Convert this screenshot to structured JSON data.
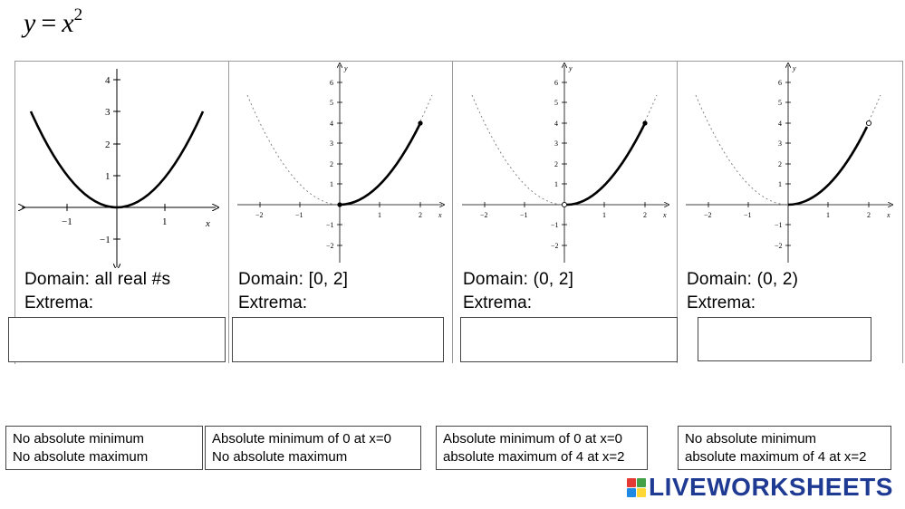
{
  "equation": {
    "lhs": "y",
    "op": "=",
    "base": "x",
    "exp": "2"
  },
  "panels": [
    {
      "domain": "Domain:  all real #s",
      "extrema": "Extrema:",
      "x_ticks": [
        "−1",
        "1"
      ],
      "x_label": "x",
      "y_ticks": [
        "4",
        "3",
        "2",
        "1",
        "−1"
      ]
    },
    {
      "domain": "Domain:  [0, 2]",
      "extrema": "Extrema:",
      "x_ticks": [
        "−2",
        "−1",
        "1",
        "2"
      ],
      "x_label": "x",
      "y_label": "y",
      "y_ticks": [
        "6",
        "5",
        "4",
        "3",
        "2",
        "1",
        "−1",
        "−2"
      ]
    },
    {
      "domain": "Domain:  (0, 2]",
      "extrema": "Extrema:",
      "x_ticks": [
        "−2",
        "−1",
        "1",
        "2"
      ],
      "x_label": "x",
      "y_label": "y",
      "y_ticks": [
        "6",
        "5",
        "4",
        "3",
        "2",
        "1",
        "−1",
        "−2"
      ]
    },
    {
      "domain": "Domain:  (0, 2)",
      "extrema": "Extrema:",
      "x_ticks": [
        "−2",
        "−1",
        "1",
        "2"
      ],
      "x_label": "x",
      "y_label": "y",
      "y_ticks": [
        "6",
        "5",
        "4",
        "3",
        "2",
        "1",
        "−1",
        "−2"
      ]
    }
  ],
  "answers": [
    {
      "line1": "No absolute minimum",
      "line2": "No absolute maximum"
    },
    {
      "line1": "Absolute minimum of 0 at x=0",
      "line2": "No absolute maximum"
    },
    {
      "line1": "Absolute minimum of 0 at x=0",
      "line2": "absolute maximum of 4 at x=2"
    },
    {
      "line1": "No absolute minimum",
      "line2": "absolute maximum of 4 at x=2"
    }
  ],
  "logo": {
    "text": "LIVEWORKSHEETS",
    "icon": "liveworksheets-logo-icon",
    "colors": [
      "#e53935",
      "#43a047",
      "#1e88e5",
      "#fdd835"
    ],
    "text_color": "#1f3a93"
  }
}
